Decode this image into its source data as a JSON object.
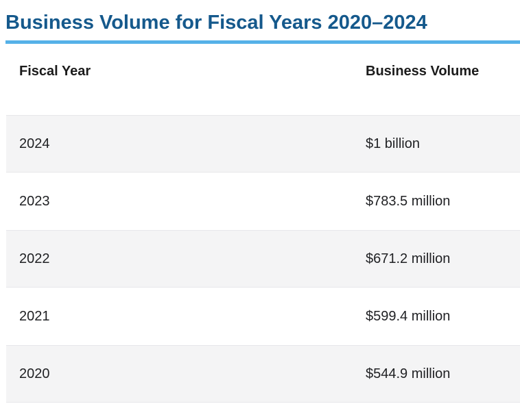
{
  "title": "Business Volume for Fiscal Years 2020–2024",
  "colors": {
    "title_text": "#15598c",
    "title_rule": "#55b1e8",
    "row_alt_bg": "#f4f4f5",
    "header_text": "#1b1b1b",
    "body_text": "#202124"
  },
  "table": {
    "columns": {
      "fiscal_year": "Fiscal Year",
      "business_volume": "Business Volume"
    },
    "rows": [
      {
        "fiscal_year": "2024",
        "business_volume": "$1 billion"
      },
      {
        "fiscal_year": "2023",
        "business_volume": "$783.5 million"
      },
      {
        "fiscal_year": "2022",
        "business_volume": "$671.2 million"
      },
      {
        "fiscal_year": "2021",
        "business_volume": "$599.4 million"
      },
      {
        "fiscal_year": "2020",
        "business_volume": "$544.9 million"
      }
    ]
  },
  "chart_data": {
    "type": "table",
    "title": "Business Volume for Fiscal Years 2020–2024",
    "columns": [
      "Fiscal Year",
      "Business Volume"
    ],
    "rows": [
      [
        "2024",
        "$1 billion"
      ],
      [
        "2023",
        "$783.5 million"
      ],
      [
        "2022",
        "$671.2 million"
      ],
      [
        "2021",
        "$599.4 million"
      ],
      [
        "2020",
        "$544.9 million"
      ]
    ],
    "series": [
      {
        "name": "Business Volume (USD millions)",
        "x": [
          2020,
          2021,
          2022,
          2023,
          2024
        ],
        "values": [
          544.9,
          599.4,
          671.2,
          783.5,
          1000
        ]
      }
    ]
  }
}
